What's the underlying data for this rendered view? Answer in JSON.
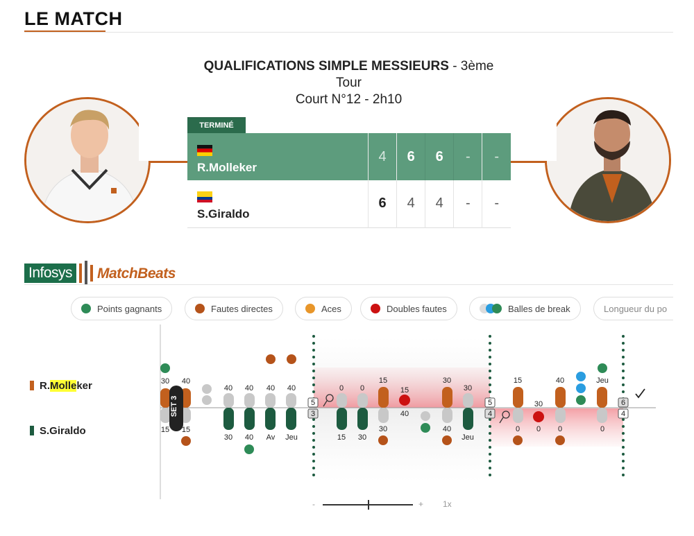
{
  "section_title": "LE MATCH",
  "match": {
    "event_bold": "QUALIFICATIONS SIMPLE MESSIEURS",
    "event_round_a": " - 3ème",
    "event_round_b": "Tour",
    "court": "Court N°12 - 2h10",
    "status": "TERMINÉ"
  },
  "players": [
    {
      "name": "R.Molleker",
      "country_flag": "germany",
      "sets": [
        "4",
        "6",
        "6",
        "-",
        "-"
      ],
      "set_won": [
        false,
        true,
        true,
        false,
        false
      ]
    },
    {
      "name": "S.Giraldo",
      "country_flag": "colombia",
      "sets": [
        "6",
        "4",
        "4",
        "-",
        "-"
      ],
      "set_won": [
        true,
        false,
        false,
        false,
        false
      ]
    }
  ],
  "matchbeats": {
    "brand_a": "Infosys",
    "brand_b": "MatchBeats",
    "filters": [
      {
        "label": "Points gagnants",
        "icon": "winner-icon",
        "color": "#2e8b57"
      },
      {
        "label": "Fautes directes",
        "icon": "error-icon",
        "color": "#b5531a"
      },
      {
        "label": "Aces",
        "icon": "ace-icon",
        "color": "#e8962a"
      },
      {
        "label": "Doubles fautes",
        "icon": "double-fault-icon",
        "color": "#cc1111"
      },
      {
        "label": "Balles de break",
        "icon": "break-ball-icon",
        "color": "#2a9de0"
      },
      {
        "label": "Longueur du po",
        "icon": "",
        "color": ""
      }
    ],
    "player_top_first": "R.",
    "player_top_hl": "Molle",
    "player_top_rest": "ker",
    "player_bottom": "S.Giraldo",
    "set_label": "SET 3",
    "top_scores": [
      "30",
      "40",
      "40",
      "40",
      "40",
      "40",
      "0",
      "0",
      "15",
      "15",
      "30",
      "30",
      "15",
      "30",
      "40",
      "Jeu"
    ],
    "bottom_scores": [
      "15",
      "15",
      "30",
      "40",
      "Av",
      "Jeu",
      "15",
      "30",
      "30",
      "40",
      "40",
      "Jeu",
      "0",
      "0",
      "0",
      "0"
    ],
    "game_scores": [
      "5",
      "3",
      "5",
      "4",
      "6",
      "4"
    ],
    "zoom_label": "1x",
    "zoom_minus": "-",
    "zoom_plus": "+"
  },
  "colors": {
    "accent": "#c2601e",
    "green": "#2b6b4c",
    "bar_green": "#1d5b40",
    "bar_grey": "#c8c8c8"
  }
}
